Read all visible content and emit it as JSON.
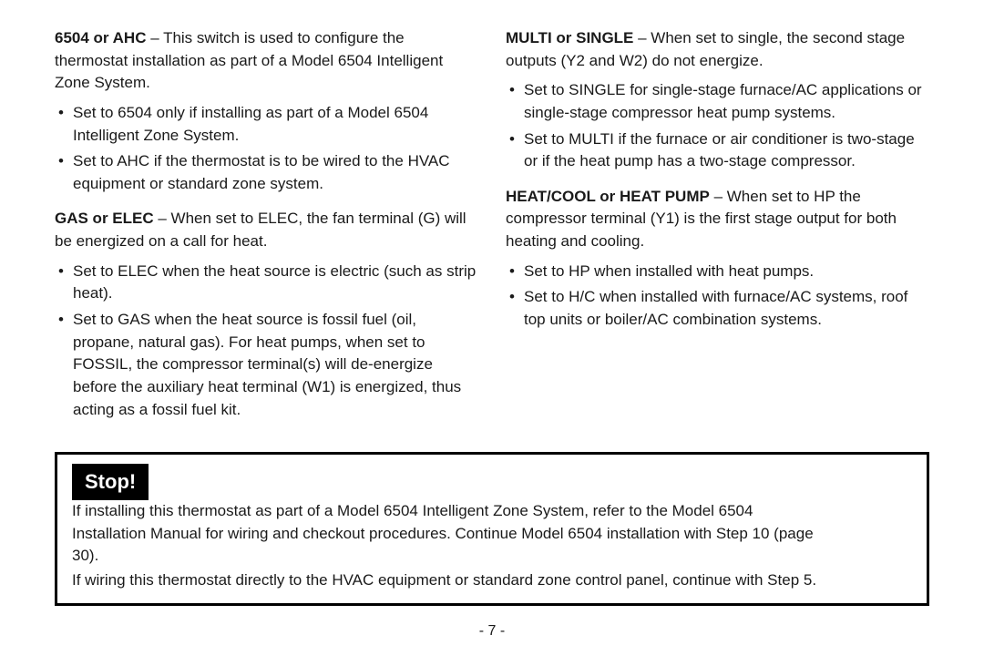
{
  "left": {
    "s1": {
      "lead": "6504 or AHC",
      "text": " – This switch is used to configure the thermostat installation as part of a Model 6504 Intelligent Zone System.",
      "bullets": [
        "Set to 6504 only if installing as part of a Model 6504 Intelligent Zone System.",
        "Set to AHC if the thermostat is to be wired to the HVAC equipment or standard zone system."
      ]
    },
    "s2": {
      "lead": "GAS or ELEC",
      "text": " – When set to ELEC, the fan terminal (G) will be energized on a call for heat.",
      "bullets": [
        "Set to ELEC when the heat source is electric (such as strip heat).",
        "Set to GAS when the heat source is fossil fuel (oil, propane, natural gas). For heat pumps, when set to FOSSIL, the compressor terminal(s) will de-energize before the auxiliary heat terminal (W1) is energized, thus acting as a fossil fuel kit."
      ]
    }
  },
  "right": {
    "s1": {
      "lead": "MULTI or SINGLE",
      "text": " – When set to single, the second stage outputs (Y2 and W2) do not energize.",
      "bullets": [
        "Set to SINGLE for single-stage furnace/AC applications or single-stage compressor heat pump systems.",
        "Set to MULTI if the furnace or air conditioner is two-stage or if the heat pump has a two-stage compressor."
      ]
    },
    "s2": {
      "lead": "HEAT/COOL or HEAT PUMP",
      "text": " – When set to HP the compressor terminal (Y1) is the first stage output for both heating and cooling.",
      "bullets": [
        "Set to HP when installed with heat pumps.",
        "Set to H/C when installed with furnace/AC systems, roof top units or boiler/AC combination systems."
      ]
    }
  },
  "stop": {
    "badge": "Stop!",
    "line1": "If installing this thermostat as part of a Model 6504 Intelligent Zone System, refer to the Model 6504",
    "line2": "Installation Manual for wiring and checkout procedures. Continue Model 6504 installation with Step 10 (page 30).",
    "line3": "If wiring this thermostat directly to the HVAC equipment or standard zone control panel, continue with Step 5."
  },
  "page_number": "- 7 -"
}
